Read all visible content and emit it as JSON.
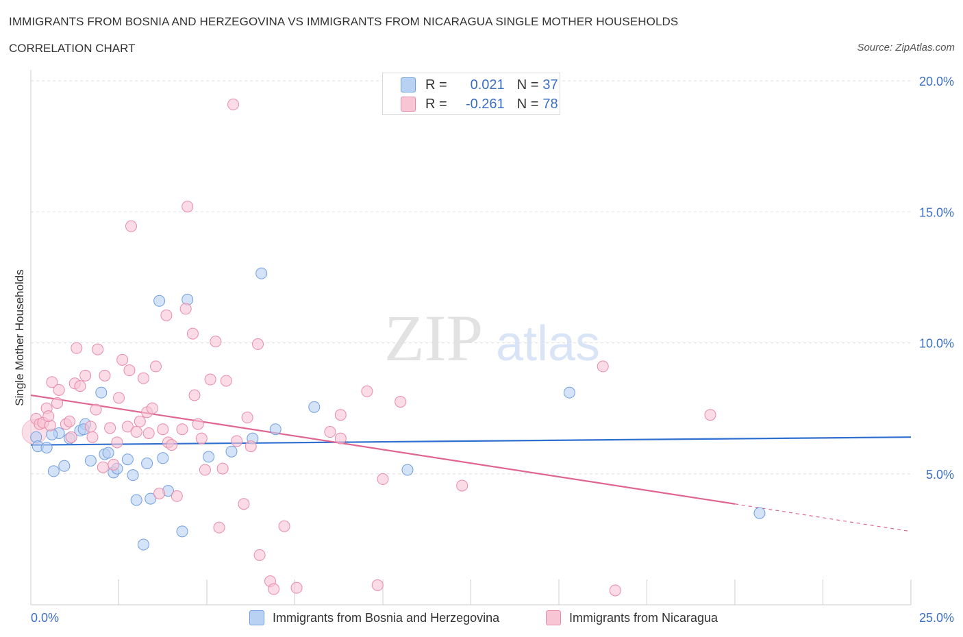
{
  "header": {
    "title": "IMMIGRANTS FROM BOSNIA AND HERZEGOVINA VS IMMIGRANTS FROM NICARAGUA SINGLE MOTHER HOUSEHOLDS",
    "subtitle": "CORRELATION CHART",
    "source": "Source: ZipAtlas.com"
  },
  "watermark": {
    "zip": "ZIP",
    "atlas": "atlas"
  },
  "legend": {
    "r_label": "R =",
    "n_label": "N =",
    "series1": {
      "r": "0.021",
      "n": "37"
    },
    "series2": {
      "r": "-0.261",
      "n": "78"
    }
  },
  "colors": {
    "blue_fill": "#b9d1f3",
    "blue_stroke": "#6f9ee0",
    "blue_line": "#2f6fd0",
    "pink_fill": "#f8c5d5",
    "pink_stroke": "#e98aa8",
    "pink_line": "#e06591",
    "axis_text": "#3a6fc4",
    "grid": "#dddddd"
  },
  "chart_data": {
    "type": "scatter",
    "title": "IMMIGRANTS FROM BOSNIA AND HERZEGOVINA VS IMMIGRANTS FROM NICARAGUA SINGLE MOTHER HOUSEHOLDS",
    "xlabel": "",
    "ylabel": "Single Mother Households",
    "xlim": [
      0,
      25
    ],
    "ylim": [
      0,
      20
    ],
    "x_tick_labels": [
      "0.0%",
      "25.0%"
    ],
    "y_ticks": [
      5,
      10,
      15,
      20
    ],
    "y_tick_labels": [
      "5.0%",
      "10.0%",
      "15.0%",
      "20.0%"
    ],
    "grid": true,
    "legend_position": "top-center",
    "series": [
      {
        "name": "Immigrants from Bosnia and Herzegovina",
        "color": "blue",
        "r": 0.021,
        "n": 37,
        "trend": {
          "x": [
            0,
            25
          ],
          "y": [
            6.1,
            6.4
          ]
        },
        "points": [
          [
            0.15,
            6.4
          ],
          [
            0.2,
            6.05
          ],
          [
            0.45,
            6.0
          ],
          [
            0.65,
            5.1
          ],
          [
            0.95,
            5.3
          ],
          [
            0.8,
            6.55
          ],
          [
            1.1,
            6.35
          ],
          [
            1.4,
            6.65
          ],
          [
            1.55,
            6.9
          ],
          [
            1.7,
            5.5
          ],
          [
            2.0,
            8.1
          ],
          [
            2.1,
            5.75
          ],
          [
            2.2,
            5.8
          ],
          [
            2.35,
            5.05
          ],
          [
            2.45,
            5.2
          ],
          [
            2.75,
            5.55
          ],
          [
            2.9,
            4.95
          ],
          [
            3.0,
            4.0
          ],
          [
            3.2,
            2.3
          ],
          [
            3.3,
            5.4
          ],
          [
            3.4,
            4.05
          ],
          [
            3.65,
            11.6
          ],
          [
            3.75,
            5.6
          ],
          [
            3.9,
            4.35
          ],
          [
            4.3,
            2.8
          ],
          [
            4.45,
            11.65
          ],
          [
            5.05,
            5.65
          ],
          [
            5.7,
            5.85
          ],
          [
            6.3,
            6.35
          ],
          [
            6.55,
            12.65
          ],
          [
            6.95,
            6.7
          ],
          [
            8.05,
            7.55
          ],
          [
            10.7,
            5.15
          ],
          [
            15.3,
            8.1
          ],
          [
            20.7,
            3.5
          ],
          [
            1.5,
            6.7
          ],
          [
            0.6,
            6.5
          ]
        ]
      },
      {
        "name": "Immigrants from Nicaragua",
        "color": "pink",
        "r": -0.261,
        "n": 78,
        "trend": {
          "x": [
            0,
            20
          ],
          "y": [
            8.0,
            3.85
          ]
        },
        "trend_dashed": {
          "x": [
            20,
            25
          ],
          "y": [
            3.85,
            2.8
          ]
        },
        "points": [
          [
            0.15,
            7.1
          ],
          [
            0.25,
            6.9
          ],
          [
            0.35,
            6.95
          ],
          [
            0.45,
            7.5
          ],
          [
            0.55,
            6.85
          ],
          [
            0.6,
            8.5
          ],
          [
            0.75,
            7.7
          ],
          [
            0.8,
            8.2
          ],
          [
            1.0,
            6.9
          ],
          [
            1.1,
            7.0
          ],
          [
            1.15,
            6.4
          ],
          [
            1.25,
            8.45
          ],
          [
            1.3,
            9.8
          ],
          [
            1.4,
            8.35
          ],
          [
            1.55,
            8.75
          ],
          [
            1.75,
            6.4
          ],
          [
            1.85,
            7.45
          ],
          [
            1.9,
            9.75
          ],
          [
            2.05,
            5.25
          ],
          [
            2.1,
            8.75
          ],
          [
            2.25,
            6.75
          ],
          [
            2.35,
            5.35
          ],
          [
            2.45,
            6.2
          ],
          [
            2.5,
            7.9
          ],
          [
            2.6,
            9.35
          ],
          [
            2.75,
            6.8
          ],
          [
            2.8,
            8.95
          ],
          [
            2.85,
            14.45
          ],
          [
            3.0,
            6.6
          ],
          [
            3.1,
            7.0
          ],
          [
            3.2,
            8.65
          ],
          [
            3.3,
            7.35
          ],
          [
            3.35,
            6.55
          ],
          [
            3.45,
            7.5
          ],
          [
            3.55,
            9.1
          ],
          [
            3.65,
            4.25
          ],
          [
            3.75,
            6.7
          ],
          [
            3.85,
            11.05
          ],
          [
            3.9,
            6.2
          ],
          [
            4.0,
            6.1
          ],
          [
            4.15,
            4.15
          ],
          [
            4.3,
            6.7
          ],
          [
            4.4,
            11.3
          ],
          [
            4.45,
            15.2
          ],
          [
            4.6,
            10.35
          ],
          [
            4.65,
            8.0
          ],
          [
            4.75,
            6.9
          ],
          [
            4.85,
            6.35
          ],
          [
            4.95,
            5.15
          ],
          [
            5.1,
            8.6
          ],
          [
            5.25,
            10.05
          ],
          [
            5.35,
            2.95
          ],
          [
            5.45,
            5.2
          ],
          [
            5.55,
            8.55
          ],
          [
            5.75,
            19.1
          ],
          [
            5.85,
            6.25
          ],
          [
            6.05,
            3.85
          ],
          [
            6.15,
            7.15
          ],
          [
            6.25,
            6.05
          ],
          [
            6.45,
            9.95
          ],
          [
            6.5,
            1.9
          ],
          [
            6.8,
            0.9
          ],
          [
            6.9,
            0.6
          ],
          [
            7.2,
            3.0
          ],
          [
            7.55,
            0.65
          ],
          [
            8.5,
            6.6
          ],
          [
            8.8,
            7.25
          ],
          [
            9.55,
            8.15
          ],
          [
            9.85,
            0.75
          ],
          [
            10.0,
            4.8
          ],
          [
            10.5,
            7.75
          ],
          [
            12.25,
            4.55
          ],
          [
            16.25,
            9.1
          ],
          [
            19.3,
            7.25
          ],
          [
            16.6,
            0.55
          ],
          [
            8.8,
            6.35
          ],
          [
            0.5,
            7.2
          ],
          [
            1.7,
            6.8
          ]
        ]
      }
    ]
  }
}
